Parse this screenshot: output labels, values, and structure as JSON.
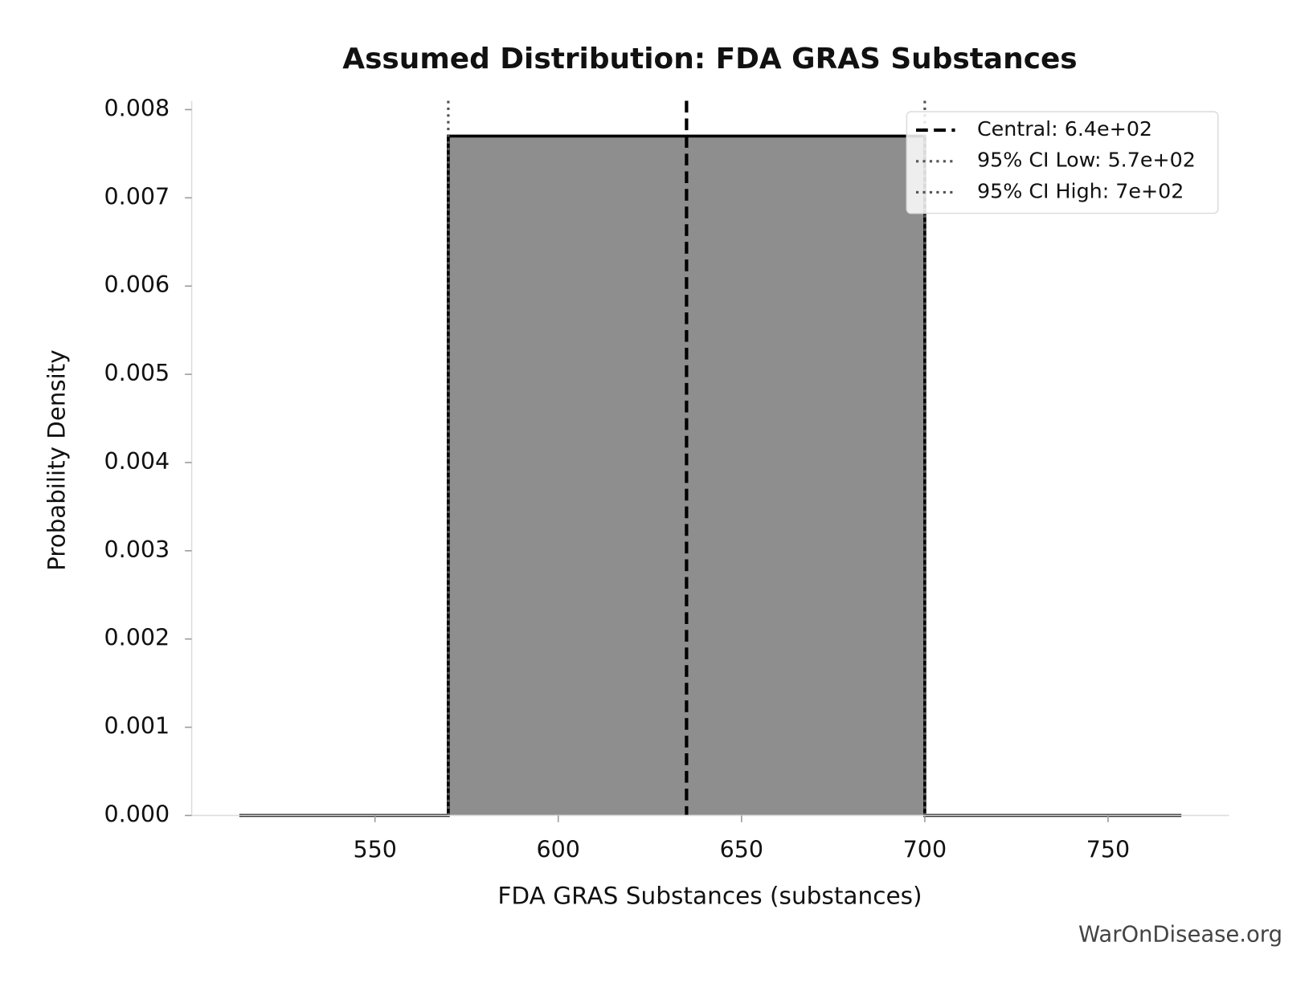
{
  "chart_data": {
    "type": "line",
    "title": "Assumed Distribution: FDA GRAS Substances",
    "x_label": "FDA GRAS Substances (substances)",
    "y_label": "Probability Density",
    "x": [
      513,
      570,
      570,
      700,
      700,
      770
    ],
    "values": [
      0,
      0,
      0.0077,
      0.0077,
      0,
      0
    ],
    "color": "#000000",
    "fill_color": "#8e8e8e",
    "xlim": [
      500,
      783
    ],
    "ylim": [
      0,
      0.0081
    ],
    "xticks": [
      550,
      600,
      650,
      700,
      750
    ],
    "yticks": [
      {
        "value": 0,
        "label": "0.000"
      },
      0.001,
      0.002,
      0.003,
      0.004,
      0.005,
      0.006,
      0.007,
      0.008
    ],
    "vlines": [
      {
        "name": "Central: 6.4e+02",
        "x": 635,
        "style": "dashed",
        "color": "#000000"
      },
      {
        "name": "95% CI Low: 5.7e+02",
        "x": 570,
        "style": "dotted",
        "color": "#555555"
      },
      {
        "name": "95% CI High: 7e+02",
        "x": 700,
        "style": "dotted",
        "color": "#555555"
      }
    ],
    "legend": "upper right",
    "grid": false,
    "watermark": "WarOnDisease.org"
  }
}
